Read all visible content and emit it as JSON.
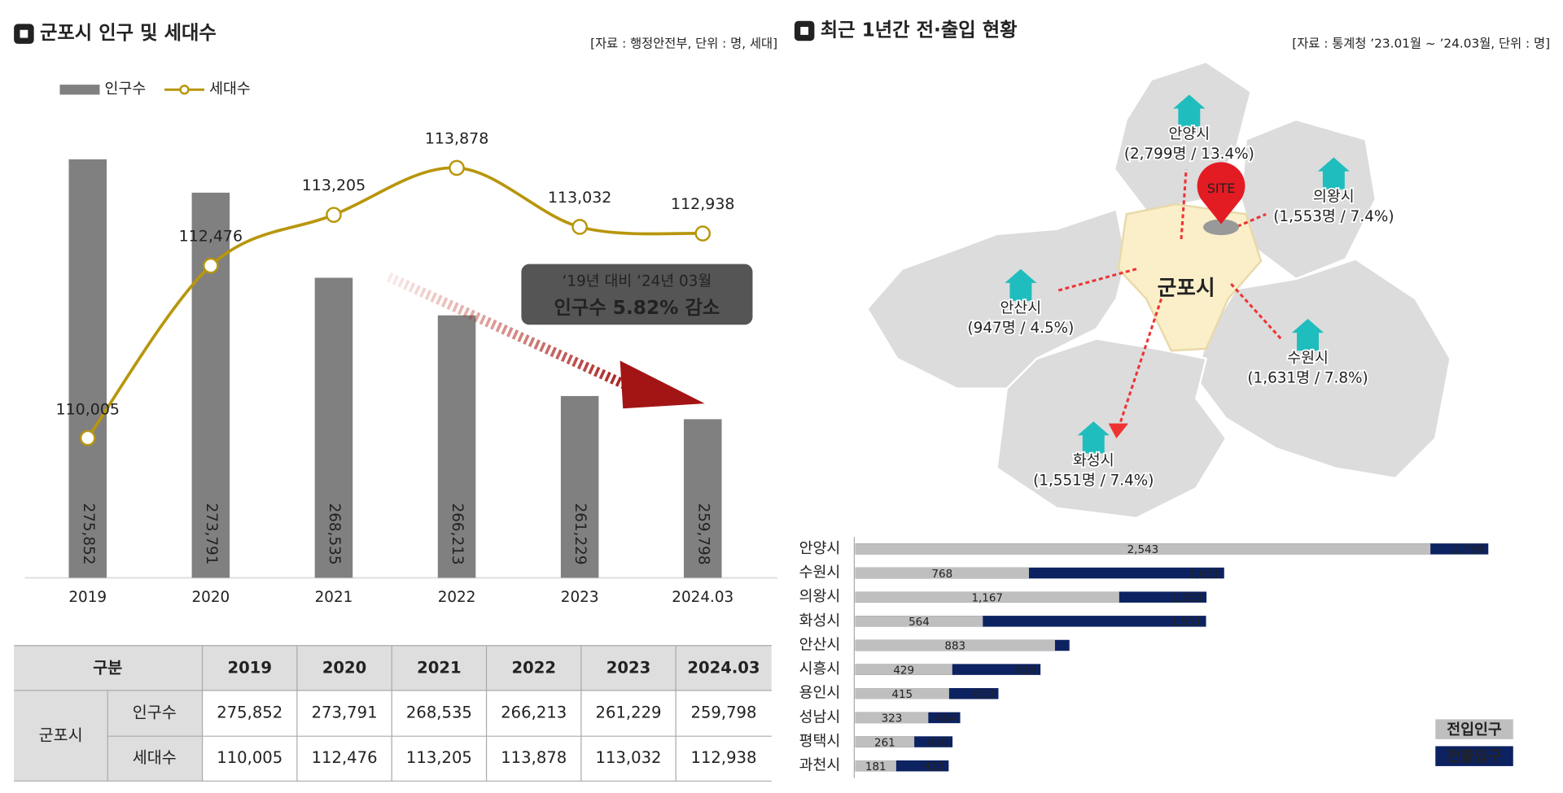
{
  "panels": [
    {
      "title": "군포시 인구 및 세대수",
      "source": "[자료 : 행정안전부, 단위 : 명, 세대]"
    },
    {
      "title": "최근 1년간 전·출입 현황",
      "source": "[자료 : 통계청 ’23.01월 ~ ’24.03월, 단위 : 명]"
    }
  ],
  "chart_data": [
    {
      "type": "bar",
      "categories": [
        "2019",
        "2020",
        "2021",
        "2022",
        "2023",
        "2024.03"
      ],
      "series": [
        {
          "name": "인구수",
          "color": "#808080",
          "values": [
            275852,
            273791,
            268535,
            266213,
            261229,
            259798
          ],
          "value_labels": [
            "275,852",
            "273,791",
            "268,535",
            "266,213",
            "261,229",
            "259,798"
          ]
        },
        {
          "name": "세대수",
          "color": "#b8960c",
          "type": "line",
          "axis": "y2",
          "values": [
            110005,
            112476,
            113205,
            113878,
            113032,
            112938
          ],
          "value_labels": [
            "110,005",
            "112,476",
            "113,205",
            "113,878",
            "113,032",
            "112,938"
          ]
        }
      ],
      "ylim": [
        250000,
        278000
      ],
      "y2lim": [
        108000,
        114500
      ],
      "grid": false,
      "legend": "top-left",
      "annotation": {
        "line1": "‘19년 대비 ‘24년 03월",
        "line2": "인구수 5.82% 감소"
      }
    },
    {
      "type": "barh",
      "categories": [
        "안양시",
        "수원시",
        "의왕시",
        "화성시",
        "안산시",
        "시흥시",
        "용인시",
        "성남시",
        "평택시",
        "과천시"
      ],
      "series": [
        {
          "name": "전입인구",
          "color": "#bfbfbf",
          "values": [
            2543,
            768,
            1167,
            564,
            883,
            429,
            415,
            323,
            261,
            181
          ],
          "value_labels": [
            "2,543",
            "768",
            "1,167",
            "564",
            "883",
            "429",
            "415",
            "323",
            "261",
            "181"
          ]
        },
        {
          "name": "전출입구",
          "color": "#0d2260",
          "values": [
            2799,
            1631,
            1553,
            1551,
            947,
            819,
            633,
            464,
            430,
            413
          ],
          "value_labels": [
            "2,799",
            "1,631",
            "1,553",
            "1,551",
            null,
            "819",
            "633",
            "464",
            "430",
            "413"
          ]
        }
      ],
      "xlim": [
        0,
        2900
      ],
      "overlap": true,
      "legend": "bottom-right"
    }
  ],
  "table": {
    "header": [
      "구분",
      "2019",
      "2020",
      "2021",
      "2022",
      "2023",
      "2024.03"
    ],
    "group": "군포시",
    "rows": [
      {
        "label": "인구수",
        "cells": [
          "275,852",
          "273,791",
          "268,535",
          "266,213",
          "261,229",
          "259,798"
        ]
      },
      {
        "label": "세대수",
        "cells": [
          "110,005",
          "112,476",
          "113,205",
          "113,878",
          "113,032",
          "112,938"
        ]
      }
    ]
  },
  "map": {
    "center": "군포시",
    "site": "SITE",
    "nodes": [
      {
        "name": "안양시",
        "detail": "(2,799명 / 13.4%)"
      },
      {
        "name": "의왕시",
        "detail": "(1,553명 / 7.4%)"
      },
      {
        "name": "안산시",
        "detail": "(947명 / 4.5%)"
      },
      {
        "name": "수원시",
        "detail": "(1,631명 / 7.8%)"
      },
      {
        "name": "화성시",
        "detail": "(1,551명 / 7.4%)"
      }
    ]
  }
}
